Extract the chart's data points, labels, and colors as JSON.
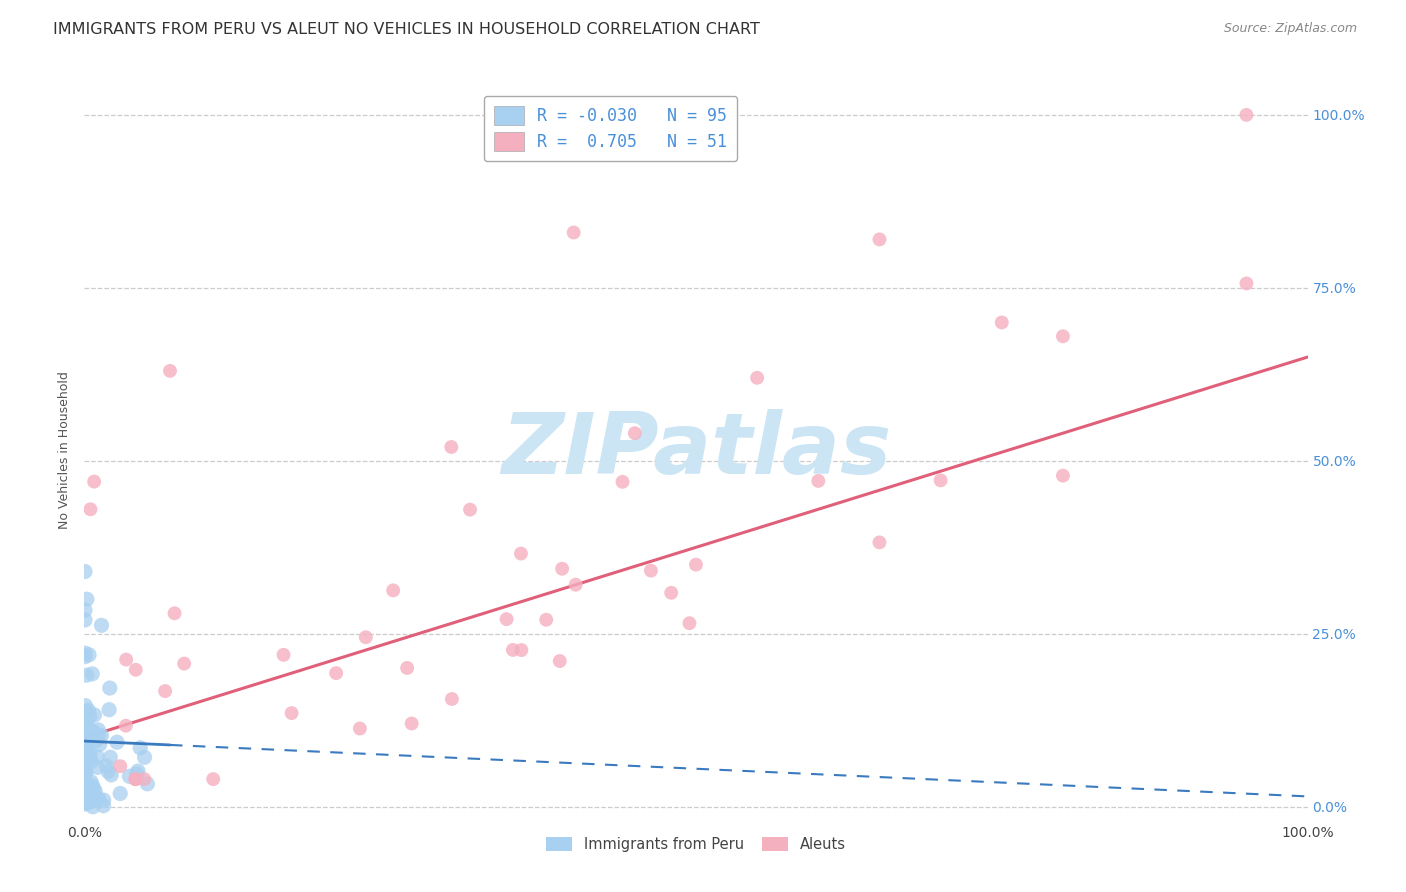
{
  "title": "IMMIGRANTS FROM PERU VS ALEUT NO VEHICLES IN HOUSEHOLD CORRELATION CHART",
  "source": "Source: ZipAtlas.com",
  "ylabel": "No Vehicles in Household",
  "xlim": [
    0.0,
    1.0
  ],
  "ylim": [
    -0.02,
    1.05
  ],
  "right_yticks": [
    0.0,
    0.25,
    0.5,
    0.75,
    1.0
  ],
  "right_yticklabels": [
    "0.0%",
    "25.0%",
    "50.0%",
    "75.0%",
    "100.0%"
  ],
  "xtick_positions": [
    0.0,
    1.0
  ],
  "xtick_labels": [
    "0.0%",
    "100.0%"
  ],
  "grid_yticks": [
    0.0,
    0.25,
    0.5,
    0.75,
    1.0
  ],
  "legend_R": [
    -0.03,
    0.705
  ],
  "legend_N": [
    95,
    51
  ],
  "legend_labels": [
    "Immigrants from Peru",
    "Aleuts"
  ],
  "blue_color": "#a8d0f0",
  "pink_color": "#f5b0c0",
  "blue_line_color": "#3a7abf",
  "pink_line_color": "#e0607a",
  "watermark_text": "ZIPatlas",
  "watermark_color": "#cce5f5",
  "background_color": "#ffffff",
  "title_fontsize": 11.5,
  "source_fontsize": 9,
  "tick_fontsize": 10,
  "ylabel_fontsize": 9,
  "legend_fontsize": 12,
  "scatter_size_blue": 120,
  "scatter_size_pink": 100
}
